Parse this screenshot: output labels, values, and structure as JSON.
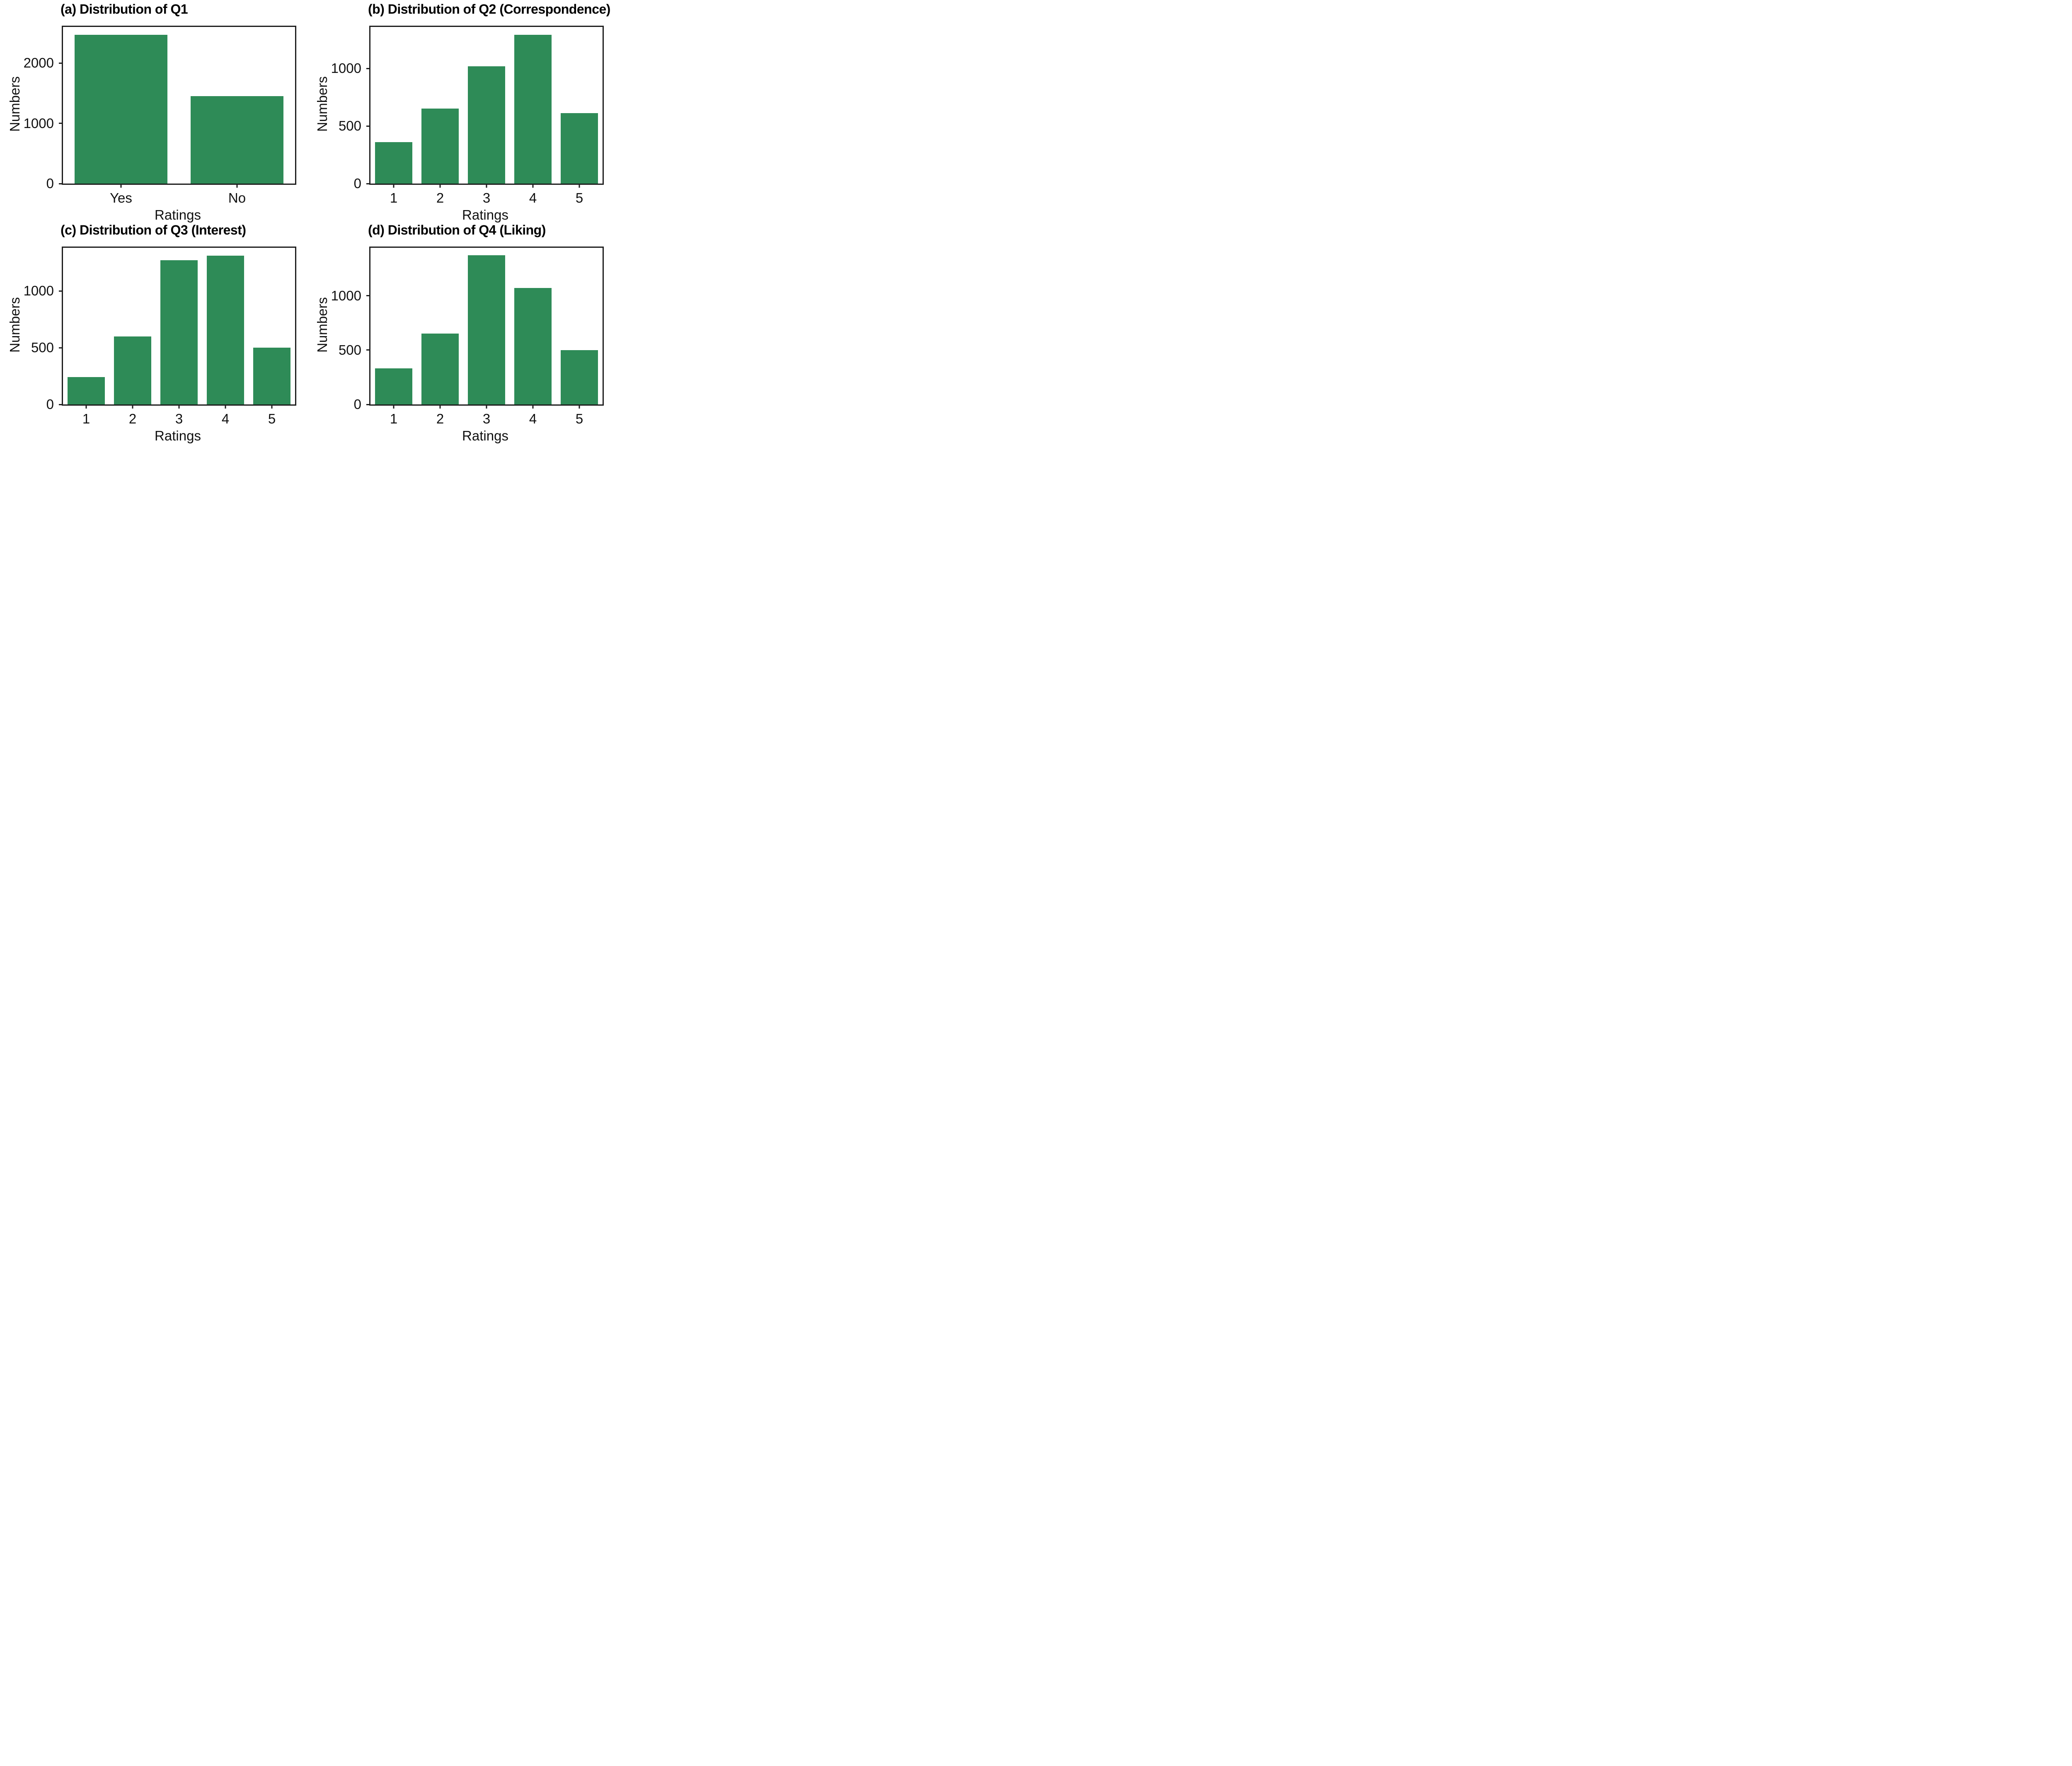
{
  "style": {
    "bar_color": "#2e8b57",
    "spine_color": "#1d1d1d",
    "text_color": "#111111",
    "background_color": "#ffffff"
  },
  "chart_data": [
    {
      "id": "a",
      "type": "bar",
      "title": "(a) Distribution of Q1",
      "xlabel": "Ratings",
      "ylabel": "Numbers",
      "categories": [
        "Yes",
        "No"
      ],
      "values": [
        2470,
        1450
      ],
      "yticks": [
        0,
        1000,
        2000
      ],
      "ylim": [
        0,
        2600
      ],
      "grid": false,
      "legend": "none"
    },
    {
      "id": "b",
      "type": "bar",
      "title": "(b) Distribution of Q2 (Correspondence)",
      "xlabel": "Ratings",
      "ylabel": "Numbers",
      "categories": [
        "1",
        "2",
        "3",
        "4",
        "5"
      ],
      "values": [
        360,
        650,
        1020,
        1290,
        610
      ],
      "yticks": [
        0,
        500,
        1000
      ],
      "ylim": [
        0,
        1360
      ],
      "grid": false,
      "legend": "none"
    },
    {
      "id": "c",
      "type": "bar",
      "title": "(c) Distribution of Q3 (Interest)",
      "xlabel": "Ratings",
      "ylabel": "Numbers",
      "categories": [
        "1",
        "2",
        "3",
        "4",
        "5"
      ],
      "values": [
        240,
        600,
        1270,
        1310,
        500
      ],
      "yticks": [
        0,
        500,
        1000
      ],
      "ylim": [
        0,
        1380
      ],
      "grid": false,
      "legend": "none"
    },
    {
      "id": "d",
      "type": "bar",
      "title": "(d) Distribution of Q4 (Liking)",
      "xlabel": "Ratings",
      "ylabel": "Numbers",
      "categories": [
        "1",
        "2",
        "3",
        "4",
        "5"
      ],
      "values": [
        330,
        650,
        1370,
        1070,
        500
      ],
      "yticks": [
        0,
        500,
        1000
      ],
      "ylim": [
        0,
        1440
      ],
      "grid": false,
      "legend": "none"
    }
  ]
}
